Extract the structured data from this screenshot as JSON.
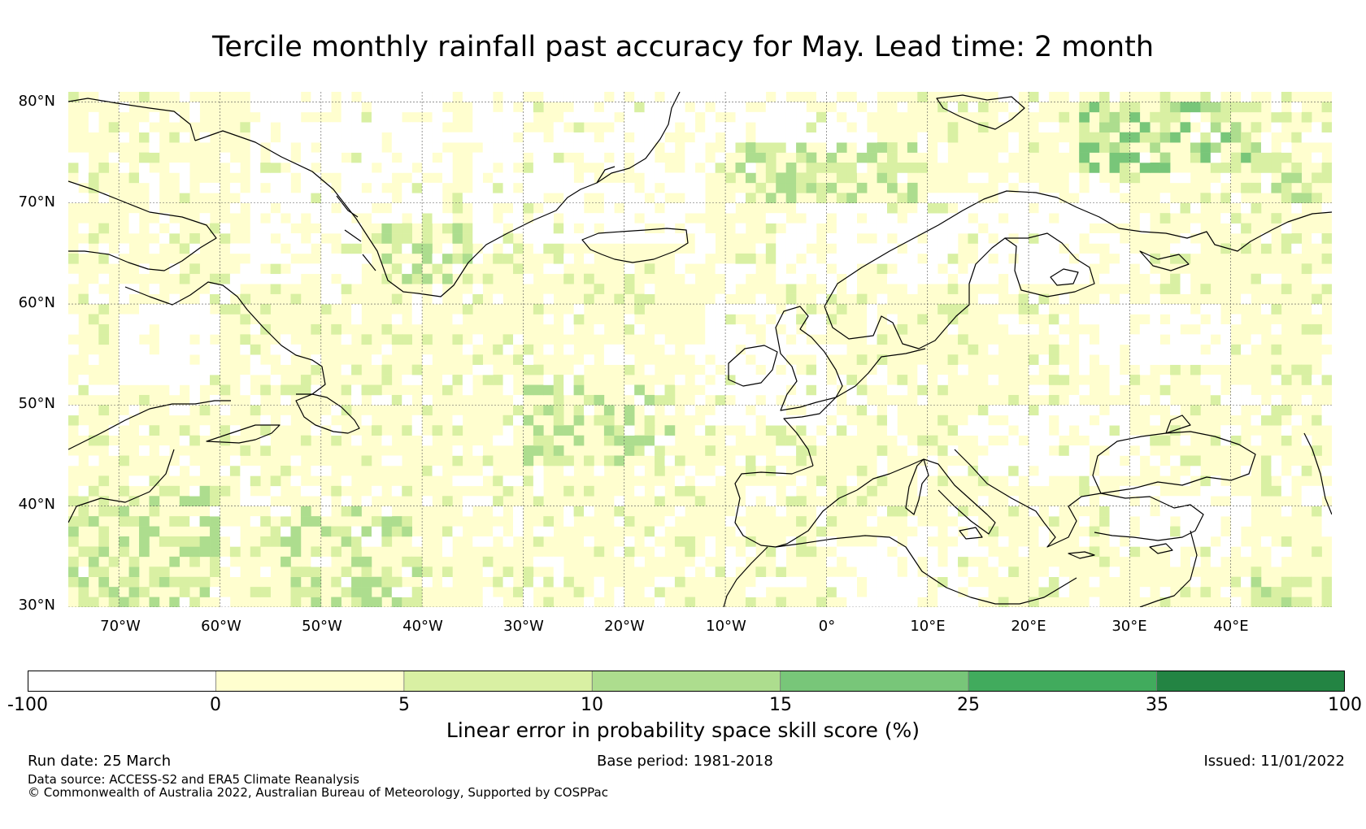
{
  "title": "Tercile monthly rainfall past accuracy for May. Lead time: 2 month",
  "map": {
    "extent": {
      "lon": [
        -75,
        50
      ],
      "lat": [
        30,
        81
      ]
    },
    "lat_ticks": [
      {
        "value": 80,
        "label": "80°N"
      },
      {
        "value": 70,
        "label": "70°N"
      },
      {
        "value": 60,
        "label": "60°N"
      },
      {
        "value": 50,
        "label": "50°N"
      },
      {
        "value": 40,
        "label": "40°N"
      },
      {
        "value": 30,
        "label": "30°N"
      }
    ],
    "lon_ticks": [
      {
        "value": -70,
        "label": "70°W"
      },
      {
        "value": -60,
        "label": "60°W"
      },
      {
        "value": -50,
        "label": "50°W"
      },
      {
        "value": -40,
        "label": "40°W"
      },
      {
        "value": -30,
        "label": "30°W"
      },
      {
        "value": -20,
        "label": "20°W"
      },
      {
        "value": -10,
        "label": "10°W"
      },
      {
        "value": 0,
        "label": "0°"
      },
      {
        "value": 10,
        "label": "10°E"
      },
      {
        "value": 20,
        "label": "20°E"
      },
      {
        "value": 30,
        "label": "30°E"
      },
      {
        "value": 40,
        "label": "40°E"
      }
    ],
    "colors": {
      "neg": "#ffffff",
      "b0_5": "#fffecf",
      "b5_10": "#d9f0a3",
      "b10_15": "#addd8e",
      "b15_25": "#78c679",
      "b25_35": "#41ab5d",
      "b35_100": "#238443"
    },
    "low_skill_regions": [
      {
        "lon": [
          -57,
          -37
        ],
        "lat": [
          62,
          81
        ]
      },
      {
        "lon": [
          -35,
          -12
        ],
        "lat": [
          66,
          81
        ]
      },
      {
        "lon": [
          -5,
          30
        ],
        "lat": [
          62,
          71
        ]
      },
      {
        "lon": [
          -12,
          0
        ],
        "lat": [
          48,
          60
        ]
      },
      {
        "lon": [
          0,
          15
        ],
        "lat": [
          30,
          37
        ]
      },
      {
        "lon": [
          15,
          30
        ],
        "lat": [
          43,
          50
        ]
      },
      {
        "lon": [
          28,
          42
        ],
        "lat": [
          36,
          42
        ]
      },
      {
        "lon": [
          -70,
          -60
        ],
        "lat": [
          52,
          60
        ]
      },
      {
        "lon": [
          -12,
          5
        ],
        "lat": [
          74,
          81
        ]
      },
      {
        "lon": [
          25,
          40
        ],
        "lat": [
          54,
          60
        ]
      }
    ],
    "high_skill_regions": [
      {
        "lon": [
          -75,
          -60
        ],
        "lat": [
          30,
          42
        ],
        "level": 10
      },
      {
        "lon": [
          -55,
          -40
        ],
        "lat": [
          30,
          40
        ],
        "level": 10
      },
      {
        "lon": [
          -10,
          10
        ],
        "lat": [
          70,
          76
        ],
        "level": 10
      },
      {
        "lon": [
          25,
          45
        ],
        "lat": [
          73,
          80
        ],
        "level": 15
      },
      {
        "lon": [
          -45,
          -35
        ],
        "lat": [
          62,
          68
        ],
        "level": 10
      },
      {
        "lon": [
          -30,
          -15
        ],
        "lat": [
          44,
          52
        ],
        "level": 10
      },
      {
        "lon": [
          42,
          50
        ],
        "lat": [
          30,
          34
        ],
        "level": 10
      },
      {
        "lon": [
          44,
          50
        ],
        "lat": [
          70,
          74
        ],
        "level": 10
      }
    ]
  },
  "colorbar": {
    "bounds": [
      "-100",
      "0",
      "5",
      "10",
      "15",
      "25",
      "35",
      "100"
    ],
    "colors": [
      "#ffffff",
      "#fffecf",
      "#d9f0a3",
      "#addd8e",
      "#78c679",
      "#41ab5d",
      "#238443"
    ],
    "label": "Linear error in probability space skill score (%)"
  },
  "footer": {
    "run_date": "Run date: 25 March",
    "base_period": "Base period: 1981-2018",
    "issued": "Issued: 11/01/2022",
    "data_source": "Data source: ACCESS-S2 and ERA5 Climate Reanalysis",
    "copyright": "© Commonwealth of Australia 2022, Australian Bureau of Meteorology, Supported by COSPPac"
  }
}
